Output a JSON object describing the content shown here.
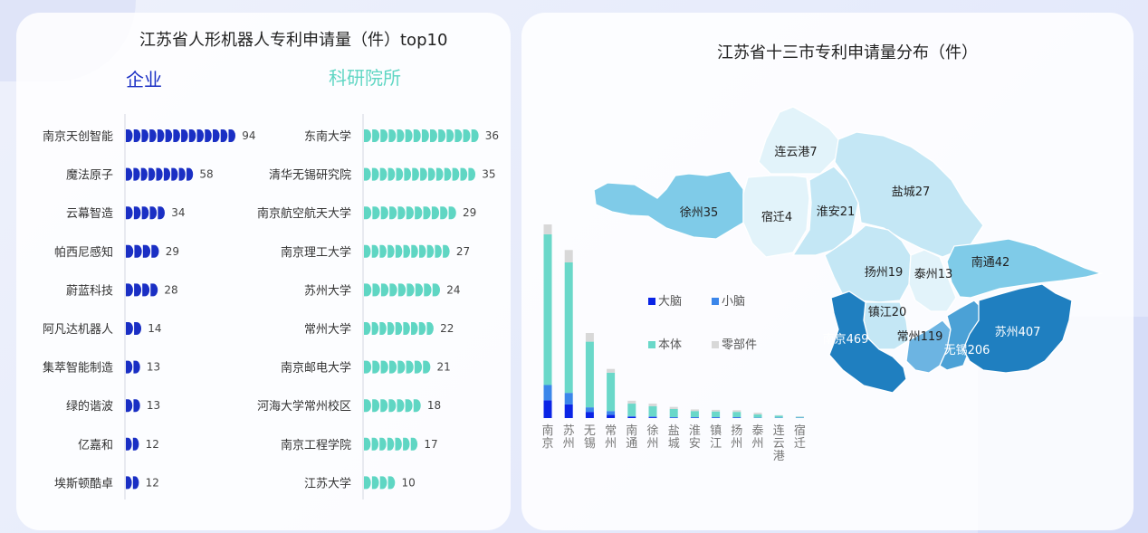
{
  "colors": {
    "enterprise": "#1a2fc4",
    "institute": "#5fd6c3",
    "brain": "#0a24e6",
    "cerebellum": "#3b86ea",
    "body": "#6ad8c9",
    "parts": "#d8d8d8"
  },
  "left": {
    "title": "江苏省人形机器人专利申请量（件）top10",
    "enterprise_label": "企业",
    "institute_label": "科研院所"
  },
  "right": {
    "title": "江苏省十三市专利申请量分布（件）"
  },
  "chart_data": [
    {
      "type": "bar",
      "orientation": "horizontal",
      "name": "企业",
      "categories": [
        "南京天创智能",
        "魔法原子",
        "云幕智造",
        "帕西尼感知",
        "蔚蓝科技",
        "阿凡达机器人",
        "集萃智能制造",
        "绿的谐波",
        "亿嘉和",
        "埃斯顿酷卓"
      ],
      "values": [
        94,
        58,
        34,
        29,
        28,
        14,
        13,
        13,
        12,
        12
      ]
    },
    {
      "type": "bar",
      "orientation": "horizontal",
      "name": "科研院所",
      "categories": [
        "东南大学",
        "清华无锡研究院",
        "南京航空航天大学",
        "南京理工大学",
        "苏州大学",
        "常州大学",
        "南京邮电大学",
        "河海大学常州校区",
        "南京工程学院",
        "江苏大学"
      ],
      "values": [
        36,
        35,
        29,
        27,
        24,
        22,
        21,
        18,
        17,
        10
      ]
    },
    {
      "type": "bar",
      "stacked": true,
      "categories": [
        "南京",
        "苏州",
        "无锡",
        "常州",
        "南通",
        "徐州",
        "盐城",
        "淮安",
        "镇江",
        "扬州",
        "泰州",
        "连云港",
        "宿迁"
      ],
      "series": [
        {
          "name": "大脑",
          "values": [
            43,
            33,
            15,
            8,
            3,
            2,
            1,
            1,
            1,
            1,
            0.5,
            0.5,
            0.5
          ]
        },
        {
          "name": "小脑",
          "values": [
            37,
            28,
            11,
            9,
            2,
            2,
            1,
            1,
            1,
            1,
            0.5,
            0.5,
            0.5
          ]
        },
        {
          "name": "本体",
          "values": [
            365,
            316,
            159,
            93,
            30,
            25,
            20,
            15,
            14,
            13,
            8,
            5,
            2
          ]
        },
        {
          "name": "零部件",
          "values": [
            24,
            30,
            21,
            9,
            7,
            6,
            5,
            4,
            4,
            4,
            4,
            1,
            1
          ]
        }
      ],
      "legend": [
        "大脑",
        "小脑",
        "本体",
        "零部件"
      ],
      "ylim": [
        0,
        470
      ]
    },
    {
      "type": "map",
      "regions": [
        {
          "name": "连云港",
          "value": 7,
          "label": "连云港7"
        },
        {
          "name": "徐州",
          "value": 35,
          "label": "徐州35"
        },
        {
          "name": "宿迁",
          "value": 4,
          "label": "宿迁4"
        },
        {
          "name": "淮安",
          "value": 21,
          "label": "淮安21"
        },
        {
          "name": "盐城",
          "value": 27,
          "label": "盐城27"
        },
        {
          "name": "扬州",
          "value": 19,
          "label": "扬州19"
        },
        {
          "name": "泰州",
          "value": 13,
          "label": "泰州13"
        },
        {
          "name": "南通",
          "value": 42,
          "label": "南通42"
        },
        {
          "name": "镇江",
          "value": 20,
          "label": "镇江20"
        },
        {
          "name": "南京",
          "value": 469,
          "label": "南京469"
        },
        {
          "name": "常州",
          "value": 119,
          "label": "常州119"
        },
        {
          "name": "无锡",
          "value": 206,
          "label": "无锡206"
        },
        {
          "name": "苏州",
          "value": 407,
          "label": "苏州407"
        }
      ]
    }
  ]
}
